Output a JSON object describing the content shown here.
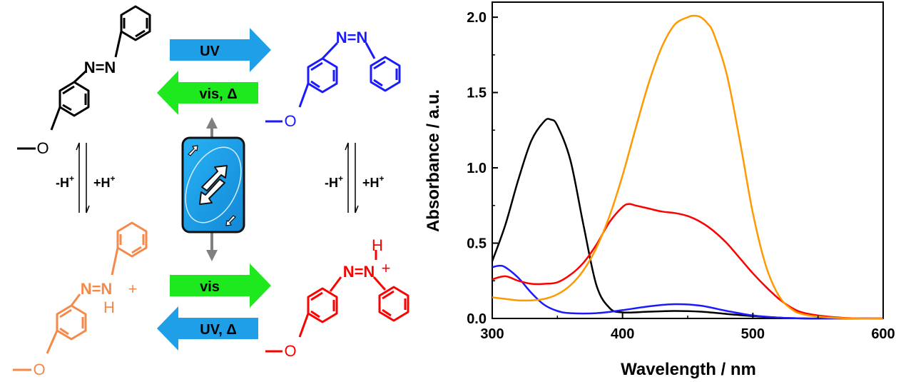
{
  "scheme": {
    "arrows": {
      "top_forward": "UV",
      "top_back": "vis, Δ",
      "bottom_forward": "vis",
      "bottom_back": "UV, Δ"
    },
    "equilibrium": {
      "minus": "-H",
      "plus": "+H",
      "sup": "+"
    },
    "molecule_labels": {
      "azo": "N=N",
      "azo_protonated": "N=N",
      "plus": "+",
      "h": "H",
      "methoxy_o": "O"
    },
    "card_icon": "reverse-card-icon",
    "colors": {
      "trans": "#000000",
      "cis": "#1a1aff",
      "protonated_trans": "#ff0000",
      "protonated_cis": "#f5894a",
      "arrow_uv": "#1e9fe8",
      "arrow_vis": "#1ee81e",
      "card": "#1e9fe8"
    }
  },
  "chart_data": {
    "type": "line",
    "xlabel": "Wavelength / nm",
    "ylabel": "Absorbance / a.u.",
    "xlim": [
      300,
      600
    ],
    "ylim": [
      0,
      2.1
    ],
    "xticks": [
      "300",
      "400",
      "500",
      "600"
    ],
    "yticks": [
      "0.0",
      "0.5",
      "1.0",
      "1.5",
      "2.0"
    ],
    "grid": false,
    "series": [
      {
        "color": "#000000",
        "x": [
          300,
          310,
          320,
          330,
          340,
          345,
          350,
          360,
          370,
          380,
          390,
          400,
          420,
          440,
          460,
          480,
          500,
          520,
          540,
          560,
          580,
          600
        ],
        "y": [
          0.38,
          0.62,
          0.92,
          1.18,
          1.31,
          1.32,
          1.28,
          1.05,
          0.62,
          0.22,
          0.07,
          0.04,
          0.045,
          0.05,
          0.045,
          0.03,
          0.015,
          0.005,
          0,
          0,
          0,
          0
        ]
      },
      {
        "color": "#1a1aff",
        "x": [
          300,
          305,
          310,
          320,
          330,
          340,
          350,
          360,
          380,
          400,
          420,
          440,
          460,
          480,
          500,
          520,
          540,
          560,
          600
        ],
        "y": [
          0.34,
          0.35,
          0.34,
          0.27,
          0.17,
          0.09,
          0.05,
          0.035,
          0.035,
          0.055,
          0.08,
          0.095,
          0.085,
          0.05,
          0.02,
          0.005,
          0,
          0,
          0
        ]
      },
      {
        "color": "#ff0000",
        "x": [
          300,
          310,
          320,
          330,
          340,
          350,
          360,
          370,
          380,
          390,
          400,
          405,
          410,
          420,
          430,
          440,
          450,
          460,
          470,
          480,
          490,
          500,
          510,
          520,
          530,
          540,
          560,
          580,
          600
        ],
        "y": [
          0.26,
          0.28,
          0.25,
          0.23,
          0.23,
          0.24,
          0.29,
          0.37,
          0.49,
          0.64,
          0.74,
          0.76,
          0.75,
          0.73,
          0.71,
          0.7,
          0.68,
          0.64,
          0.58,
          0.5,
          0.4,
          0.3,
          0.21,
          0.13,
          0.07,
          0.035,
          0.01,
          0,
          0
        ]
      },
      {
        "color": "#ff9900",
        "x": [
          300,
          310,
          320,
          330,
          340,
          350,
          360,
          370,
          380,
          390,
          400,
          410,
          420,
          430,
          440,
          450,
          455,
          460,
          465,
          470,
          480,
          490,
          500,
          510,
          520,
          530,
          540,
          560,
          580,
          600
        ],
        "y": [
          0.14,
          0.13,
          0.12,
          0.12,
          0.13,
          0.16,
          0.22,
          0.32,
          0.47,
          0.68,
          0.95,
          1.26,
          1.56,
          1.8,
          1.95,
          2.0,
          2.01,
          2.0,
          1.96,
          1.89,
          1.62,
          1.18,
          0.7,
          0.35,
          0.15,
          0.06,
          0.025,
          0.005,
          0,
          0
        ]
      }
    ]
  }
}
